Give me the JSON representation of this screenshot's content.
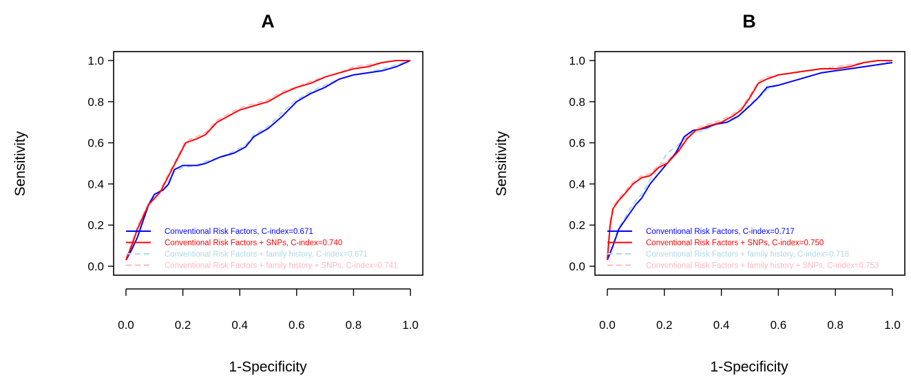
{
  "colors": {
    "crf": "#0000ff",
    "crf_snps": "#ff0000",
    "crf_fh": "#add8e6",
    "crf_fh_snps": "#ffb6c1"
  },
  "chart_data": [
    {
      "type": "line",
      "title": "A",
      "xlabel": "1-Specificity",
      "ylabel": "Sensitivity",
      "xlim": [
        0,
        1
      ],
      "ylim": [
        0,
        1
      ],
      "xticks": [
        "0.0",
        "0.2",
        "0.4",
        "0.6",
        "0.8",
        "1.0"
      ],
      "yticks": [
        "0.0",
        "0.2",
        "0.4",
        "0.6",
        "0.8",
        "1.0"
      ],
      "grid": false,
      "legend_position": "bottom-right",
      "series": [
        {
          "name": "Conventional Risk Factors, C-index=0.671",
          "color": "crf",
          "dash": "solid",
          "points": [
            [
              0,
              0.03
            ],
            [
              0.02,
              0.08
            ],
            [
              0.04,
              0.14
            ],
            [
              0.06,
              0.22
            ],
            [
              0.08,
              0.3
            ],
            [
              0.1,
              0.35
            ],
            [
              0.13,
              0.37
            ],
            [
              0.15,
              0.4
            ],
            [
              0.17,
              0.47
            ],
            [
              0.2,
              0.49
            ],
            [
              0.25,
              0.49
            ],
            [
              0.28,
              0.5
            ],
            [
              0.33,
              0.53
            ],
            [
              0.38,
              0.55
            ],
            [
              0.42,
              0.58
            ],
            [
              0.45,
              0.63
            ],
            [
              0.5,
              0.67
            ],
            [
              0.55,
              0.73
            ],
            [
              0.6,
              0.8
            ],
            [
              0.65,
              0.84
            ],
            [
              0.7,
              0.87
            ],
            [
              0.75,
              0.91
            ],
            [
              0.8,
              0.93
            ],
            [
              0.85,
              0.94
            ],
            [
              0.9,
              0.95
            ],
            [
              0.95,
              0.97
            ],
            [
              1,
              1
            ]
          ]
        },
        {
          "name": "Conventional Risk Factors + SNPs, C-index=0.740",
          "color": "crf_snps",
          "dash": "solid",
          "points": [
            [
              0,
              0.03
            ],
            [
              0.02,
              0.1
            ],
            [
              0.04,
              0.18
            ],
            [
              0.06,
              0.24
            ],
            [
              0.08,
              0.3
            ],
            [
              0.12,
              0.36
            ],
            [
              0.15,
              0.44
            ],
            [
              0.18,
              0.52
            ],
            [
              0.21,
              0.6
            ],
            [
              0.25,
              0.62
            ],
            [
              0.28,
              0.64
            ],
            [
              0.32,
              0.7
            ],
            [
              0.36,
              0.73
            ],
            [
              0.4,
              0.76
            ],
            [
              0.45,
              0.78
            ],
            [
              0.5,
              0.8
            ],
            [
              0.55,
              0.84
            ],
            [
              0.6,
              0.87
            ],
            [
              0.65,
              0.89
            ],
            [
              0.7,
              0.92
            ],
            [
              0.75,
              0.94
            ],
            [
              0.8,
              0.96
            ],
            [
              0.85,
              0.97
            ],
            [
              0.9,
              0.99
            ],
            [
              0.95,
              1.0
            ],
            [
              1,
              1
            ]
          ]
        },
        {
          "name": "Conventional Risk Factors + family history, C-index=0.671",
          "color": "crf_fh",
          "dash": "dashed",
          "points": [
            [
              0,
              0.03
            ],
            [
              0.02,
              0.08
            ],
            [
              0.04,
              0.14
            ],
            [
              0.06,
              0.23
            ],
            [
              0.08,
              0.31
            ],
            [
              0.1,
              0.34
            ],
            [
              0.13,
              0.37
            ],
            [
              0.15,
              0.41
            ],
            [
              0.17,
              0.46
            ],
            [
              0.2,
              0.48
            ],
            [
              0.25,
              0.49
            ],
            [
              0.28,
              0.51
            ],
            [
              0.33,
              0.53
            ],
            [
              0.38,
              0.56
            ],
            [
              0.42,
              0.59
            ],
            [
              0.45,
              0.64
            ],
            [
              0.5,
              0.68
            ],
            [
              0.55,
              0.75
            ],
            [
              0.6,
              0.81
            ],
            [
              0.65,
              0.85
            ],
            [
              0.7,
              0.88
            ],
            [
              0.75,
              0.91
            ],
            [
              0.8,
              0.93
            ],
            [
              0.85,
              0.94
            ],
            [
              0.9,
              0.96
            ],
            [
              0.95,
              0.98
            ],
            [
              1,
              1
            ]
          ]
        },
        {
          "name": "Conventional Risk Factors + family history + SNPs, C-index=0.741",
          "color": "crf_fh_snps",
          "dash": "dashed",
          "points": [
            [
              0,
              0.04
            ],
            [
              0.02,
              0.11
            ],
            [
              0.04,
              0.19
            ],
            [
              0.06,
              0.25
            ],
            [
              0.08,
              0.31
            ],
            [
              0.12,
              0.37
            ],
            [
              0.15,
              0.45
            ],
            [
              0.18,
              0.53
            ],
            [
              0.21,
              0.61
            ],
            [
              0.25,
              0.63
            ],
            [
              0.28,
              0.65
            ],
            [
              0.32,
              0.71
            ],
            [
              0.36,
              0.74
            ],
            [
              0.4,
              0.77
            ],
            [
              0.45,
              0.79
            ],
            [
              0.5,
              0.81
            ],
            [
              0.55,
              0.85
            ],
            [
              0.6,
              0.87
            ],
            [
              0.65,
              0.9
            ],
            [
              0.7,
              0.92
            ],
            [
              0.75,
              0.94
            ],
            [
              0.8,
              0.97
            ],
            [
              0.85,
              0.98
            ],
            [
              0.9,
              0.99
            ],
            [
              0.95,
              1.0
            ],
            [
              1,
              1
            ]
          ]
        }
      ]
    },
    {
      "type": "line",
      "title": "B",
      "xlabel": "1-Specificity",
      "ylabel": "Sensitivity",
      "xlim": [
        0,
        1
      ],
      "ylim": [
        0,
        1
      ],
      "xticks": [
        "0.0",
        "0.2",
        "0.4",
        "0.6",
        "0.8",
        "1.0"
      ],
      "yticks": [
        "0.0",
        "0.2",
        "0.4",
        "0.6",
        "0.8",
        "1.0"
      ],
      "grid": false,
      "legend_position": "bottom-right",
      "series": [
        {
          "name": "Conventional Risk Factors, C-index=0.717",
          "color": "crf",
          "dash": "solid",
          "points": [
            [
              0,
              0.03
            ],
            [
              0.02,
              0.1
            ],
            [
              0.04,
              0.18
            ],
            [
              0.06,
              0.22
            ],
            [
              0.08,
              0.26
            ],
            [
              0.1,
              0.3
            ],
            [
              0.12,
              0.33
            ],
            [
              0.15,
              0.4
            ],
            [
              0.18,
              0.45
            ],
            [
              0.21,
              0.5
            ],
            [
              0.24,
              0.55
            ],
            [
              0.27,
              0.63
            ],
            [
              0.3,
              0.66
            ],
            [
              0.34,
              0.67
            ],
            [
              0.38,
              0.69
            ],
            [
              0.42,
              0.7
            ],
            [
              0.46,
              0.73
            ],
            [
              0.5,
              0.78
            ],
            [
              0.53,
              0.82
            ],
            [
              0.56,
              0.87
            ],
            [
              0.6,
              0.88
            ],
            [
              0.65,
              0.9
            ],
            [
              0.7,
              0.92
            ],
            [
              0.75,
              0.94
            ],
            [
              0.8,
              0.95
            ],
            [
              0.85,
              0.96
            ],
            [
              0.9,
              0.97
            ],
            [
              0.95,
              0.98
            ],
            [
              1,
              0.99
            ]
          ]
        },
        {
          "name": "Conventional Risk Factors + SNPs, C-index=0.750",
          "color": "crf_snps",
          "dash": "solid",
          "points": [
            [
              0,
              0.03
            ],
            [
              0.01,
              0.2
            ],
            [
              0.02,
              0.28
            ],
            [
              0.04,
              0.32
            ],
            [
              0.06,
              0.35
            ],
            [
              0.09,
              0.4
            ],
            [
              0.12,
              0.43
            ],
            [
              0.15,
              0.44
            ],
            [
              0.18,
              0.48
            ],
            [
              0.21,
              0.5
            ],
            [
              0.25,
              0.56
            ],
            [
              0.28,
              0.62
            ],
            [
              0.31,
              0.66
            ],
            [
              0.35,
              0.68
            ],
            [
              0.4,
              0.7
            ],
            [
              0.44,
              0.73
            ],
            [
              0.47,
              0.76
            ],
            [
              0.5,
              0.82
            ],
            [
              0.53,
              0.89
            ],
            [
              0.56,
              0.91
            ],
            [
              0.6,
              0.93
            ],
            [
              0.65,
              0.94
            ],
            [
              0.7,
              0.95
            ],
            [
              0.75,
              0.96
            ],
            [
              0.8,
              0.96
            ],
            [
              0.85,
              0.97
            ],
            [
              0.9,
              0.99
            ],
            [
              0.95,
              1.0
            ],
            [
              1,
              1
            ]
          ]
        },
        {
          "name": "Conventional Risk Factors + family history, C-index=0.718",
          "color": "crf_fh",
          "dash": "dashed",
          "points": [
            [
              0,
              0.03
            ],
            [
              0.02,
              0.11
            ],
            [
              0.04,
              0.19
            ],
            [
              0.06,
              0.23
            ],
            [
              0.08,
              0.28
            ],
            [
              0.1,
              0.32
            ],
            [
              0.12,
              0.35
            ],
            [
              0.15,
              0.42
            ],
            [
              0.18,
              0.48
            ],
            [
              0.21,
              0.55
            ],
            [
              0.24,
              0.58
            ],
            [
              0.27,
              0.62
            ],
            [
              0.3,
              0.65
            ],
            [
              0.34,
              0.66
            ],
            [
              0.38,
              0.69
            ],
            [
              0.42,
              0.71
            ],
            [
              0.46,
              0.73
            ],
            [
              0.5,
              0.79
            ],
            [
              0.53,
              0.82
            ],
            [
              0.56,
              0.86
            ],
            [
              0.6,
              0.88
            ],
            [
              0.65,
              0.9
            ],
            [
              0.7,
              0.92
            ],
            [
              0.75,
              0.94
            ],
            [
              0.8,
              0.95
            ],
            [
              0.85,
              0.96
            ],
            [
              0.9,
              0.97
            ],
            [
              0.95,
              0.98
            ],
            [
              1,
              1
            ]
          ]
        },
        {
          "name": "Conventional Risk Factors + family history + SNPs, C-index=0.753",
          "color": "crf_fh_snps",
          "dash": "dashed",
          "points": [
            [
              0,
              0.04
            ],
            [
              0.01,
              0.22
            ],
            [
              0.02,
              0.29
            ],
            [
              0.04,
              0.33
            ],
            [
              0.06,
              0.36
            ],
            [
              0.09,
              0.41
            ],
            [
              0.12,
              0.44
            ],
            [
              0.15,
              0.45
            ],
            [
              0.18,
              0.49
            ],
            [
              0.21,
              0.51
            ],
            [
              0.25,
              0.57
            ],
            [
              0.28,
              0.63
            ],
            [
              0.31,
              0.67
            ],
            [
              0.35,
              0.69
            ],
            [
              0.4,
              0.71
            ],
            [
              0.44,
              0.74
            ],
            [
              0.47,
              0.77
            ],
            [
              0.5,
              0.83
            ],
            [
              0.53,
              0.9
            ],
            [
              0.56,
              0.92
            ],
            [
              0.6,
              0.93
            ],
            [
              0.65,
              0.94
            ],
            [
              0.7,
              0.95
            ],
            [
              0.75,
              0.96
            ],
            [
              0.8,
              0.97
            ],
            [
              0.85,
              0.98
            ],
            [
              0.9,
              0.99
            ],
            [
              0.95,
              1.0
            ],
            [
              1,
              1
            ]
          ]
        }
      ]
    }
  ]
}
